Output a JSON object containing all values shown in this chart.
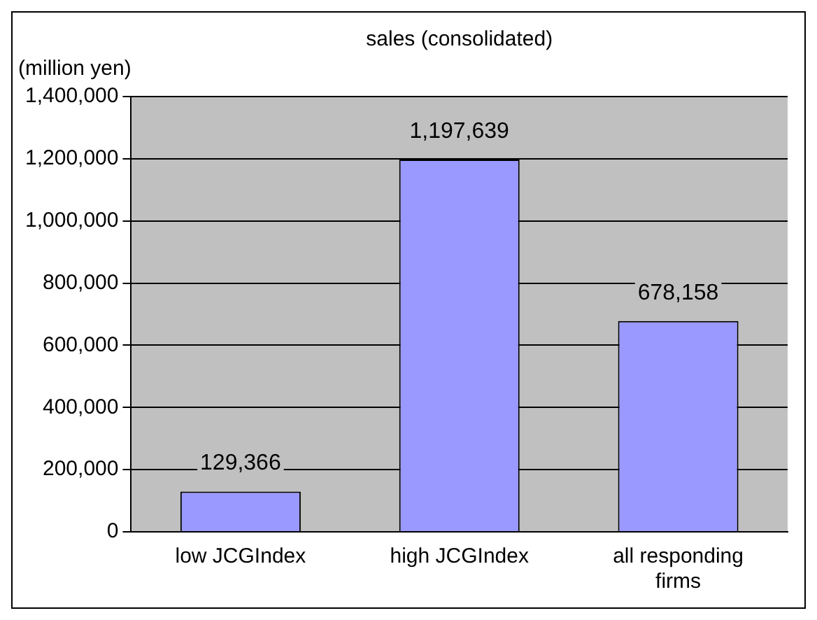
{
  "chart_data": {
    "type": "bar",
    "title": "sales (consolidated)",
    "ylabel": "(million yen)",
    "categories": [
      "low JCGIndex",
      "high JCGIndex",
      "all responding firms"
    ],
    "values": [
      129366,
      1197639,
      678158
    ],
    "value_labels": [
      "129,366",
      "1,197,639",
      "678,158"
    ],
    "color": "#9999ff",
    "ylim": [
      0,
      1400000
    ],
    "yticks": [
      0,
      {
        "value": 200000,
        "label": "200,000"
      },
      {
        "value": 400000,
        "label": "400,000"
      },
      {
        "value": 600000,
        "label": "600,000"
      },
      {
        "value": 800000,
        "label": "800,000"
      },
      {
        "value": 1000000,
        "label": "1,000,000"
      },
      {
        "value": 1200000,
        "label": "1,200,000"
      },
      {
        "value": 1400000,
        "label": "1,400,000"
      }
    ],
    "grid": "y",
    "legend": false
  }
}
